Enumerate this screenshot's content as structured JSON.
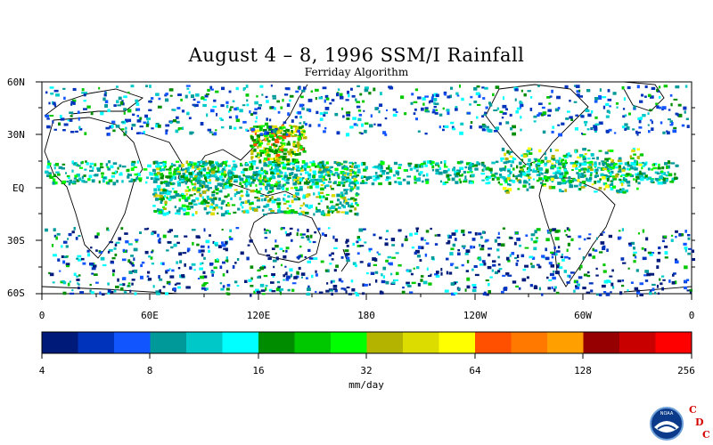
{
  "header": {
    "title": "August 4 – 8, 1996 SSM/I Rainfall",
    "subtitle": "Ferriday Algorithm"
  },
  "map": {
    "projection": "equirectangular",
    "lat_range": [
      -60,
      60
    ],
    "lon_range": [
      0,
      360
    ],
    "lat_labels": [
      "60N",
      "30N",
      "EQ",
      "30S",
      "60S"
    ],
    "lon_labels": [
      "0",
      "60E",
      "120E",
      "180",
      "120W",
      "60W",
      "0"
    ]
  },
  "colorbar": {
    "unit_label": "mm/day",
    "tick_labels": [
      "4",
      "8",
      "16",
      "32",
      "64",
      "128",
      "256"
    ],
    "colors": [
      "#001a7a",
      "#0033bb",
      "#1155ff",
      "#00999a",
      "#00c8c8",
      "#00ffff",
      "#008c00",
      "#00c800",
      "#00ff00",
      "#b4b400",
      "#dcdc00",
      "#ffff00",
      "#ff5000",
      "#ff7800",
      "#ffa000",
      "#960000",
      "#c80000",
      "#ff0000"
    ]
  },
  "logo": {
    "name": "NOAA",
    "letters": [
      "C",
      "D",
      "C"
    ]
  }
}
